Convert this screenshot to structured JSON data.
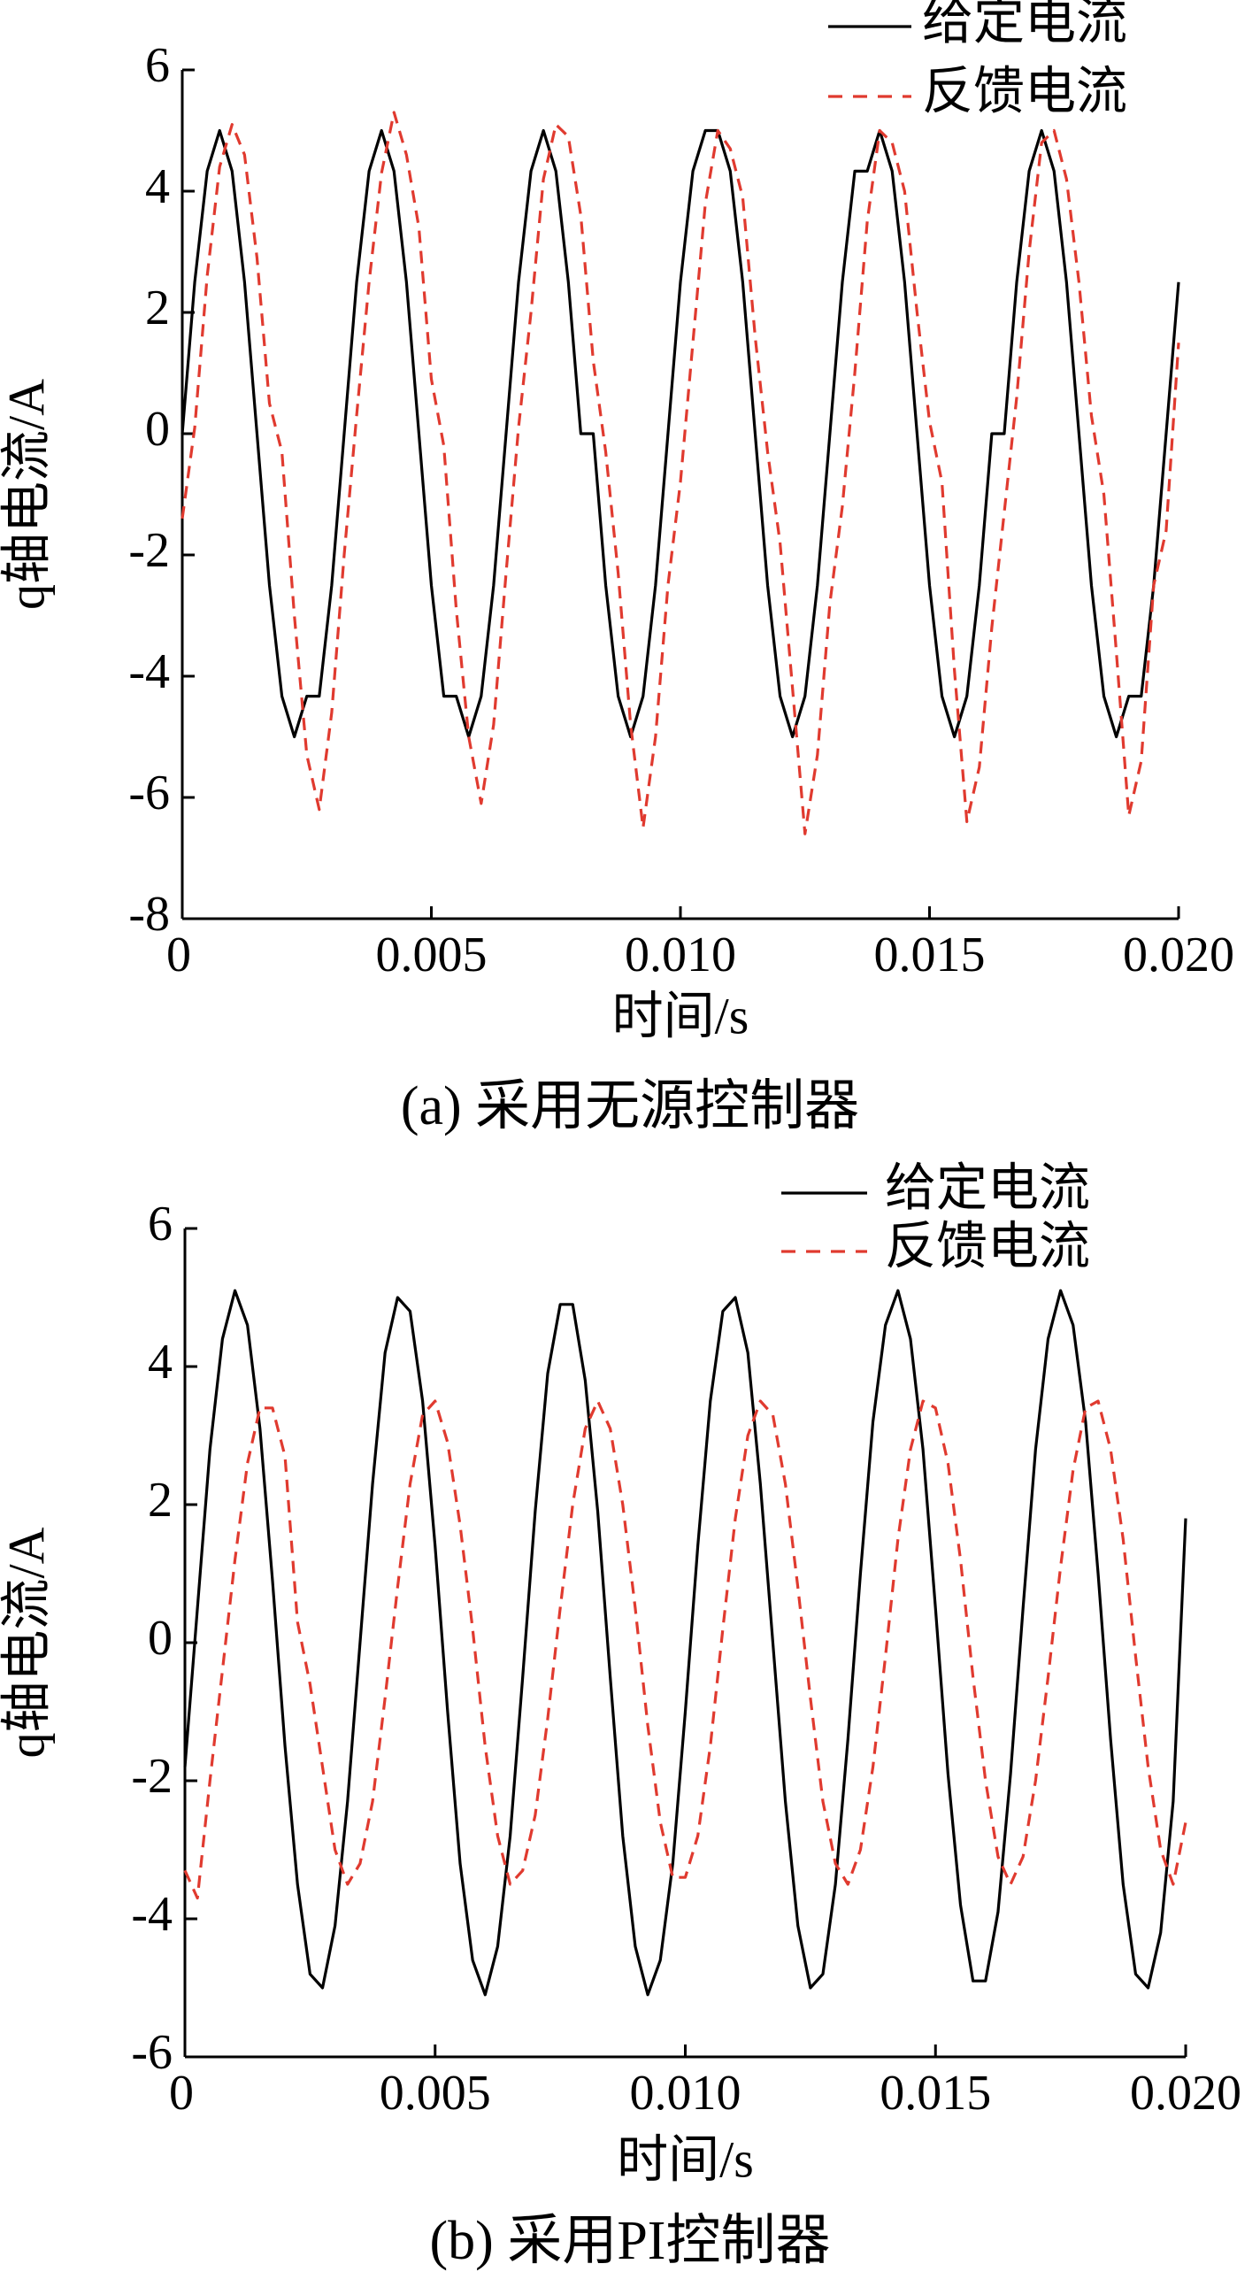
{
  "chart_data": [
    {
      "type": "line",
      "caption": "(a) 采用无源控制器",
      "xlabel": "时间/s",
      "ylabel": "q轴电流/A",
      "xlim": [
        0,
        0.02
      ],
      "ylim": [
        -8,
        6
      ],
      "xticks": [
        0,
        0.005,
        {
          "value": 0.01,
          "label": "0.010"
        },
        0.015,
        {
          "value": 0.02,
          "label": "0.020"
        }
      ],
      "yticks": [
        -8,
        -6,
        -4,
        -2,
        0,
        2,
        4,
        6
      ],
      "legend": "upper right",
      "x": [
        0,
        0.00025,
        0.0005,
        0.00075,
        0.001,
        0.00125,
        0.0015,
        0.00175,
        0.002,
        0.00225,
        0.0025,
        0.00275,
        0.003,
        0.00325,
        0.0035,
        0.00375,
        0.004,
        0.00425,
        0.0045,
        0.00475,
        0.005,
        0.00525,
        0.0055,
        0.00575,
        0.006,
        0.00625,
        0.0065,
        0.00675,
        0.007,
        0.00725,
        0.0075,
        0.00775,
        0.008,
        0.00825,
        0.0085,
        0.00875,
        0.009,
        0.00925,
        0.0095,
        0.00975,
        0.01,
        0.01025,
        0.0105,
        0.01075,
        0.011,
        0.01125,
        0.0115,
        0.01175,
        0.012,
        0.01225,
        0.0125,
        0.01275,
        0.013,
        0.01325,
        0.0135,
        0.01375,
        0.014,
        0.01425,
        0.0145,
        0.01475,
        0.015,
        0.01525,
        0.0155,
        0.01575,
        0.016,
        0.01625,
        0.0165,
        0.01675,
        0.017,
        0.01725,
        0.0175,
        0.01775,
        0.018,
        0.01825,
        0.0185,
        0.01875,
        0.019,
        0.01925,
        0.0195,
        0.01975,
        0.02
      ],
      "series": [
        {
          "name": "给定电流",
          "color": "#000000",
          "dash": false,
          "values": [
            0,
            2.5,
            4.33,
            5,
            4.33,
            2.5,
            0,
            -2.5,
            -4.33,
            -5,
            -4.33,
            -4.33,
            -2.5,
            0,
            2.5,
            4.33,
            5,
            4.33,
            2.5,
            0,
            -2.5,
            -4.33,
            -4.33,
            -5,
            -4.33,
            -2.5,
            0,
            2.5,
            4.33,
            5,
            4.33,
            2.5,
            0,
            0,
            -2.5,
            -4.33,
            -5,
            -4.33,
            -2.5,
            0,
            2.5,
            4.33,
            5,
            5,
            4.33,
            2.5,
            0,
            -2.5,
            -4.33,
            -5,
            -4.33,
            -2.5,
            0,
            2.5,
            4.33,
            4.33,
            5,
            4.33,
            2.5,
            0,
            -2.5,
            -4.33,
            -5,
            -4.33,
            -2.5,
            0,
            0,
            2.5,
            4.33,
            5,
            4.33,
            2.5,
            0,
            -2.5,
            -4.33,
            -5,
            -4.33,
            -4.33,
            -2.5,
            0,
            2.5
          ]
        },
        {
          "name": "反馈电流",
          "color": "#e03a2f",
          "dash": true,
          "values": [
            -1.4,
            0.1,
            2.6,
            4.4,
            5.1,
            4.6,
            2.9,
            0.5,
            -0.3,
            -3.0,
            -5.3,
            -6.2,
            -4.6,
            -2.0,
            0.3,
            2.5,
            4.3,
            5.3,
            4.6,
            3.4,
            0.9,
            -0.2,
            -2.9,
            -5.0,
            -6.1,
            -4.8,
            -2.3,
            0.1,
            2.0,
            4.2,
            5.1,
            4.9,
            3.6,
            1.2,
            -0.3,
            -2.3,
            -4.8,
            -6.5,
            -5.0,
            -2.5,
            -0.8,
            1.5,
            3.8,
            5.0,
            4.7,
            3.9,
            1.6,
            -0.3,
            -1.8,
            -4.2,
            -6.6,
            -5.3,
            -2.8,
            -1.2,
            1.0,
            3.5,
            5.0,
            4.8,
            4.0,
            2.0,
            0.2,
            -0.8,
            -3.9,
            -6.4,
            -5.5,
            -3.2,
            -1.3,
            0.6,
            3.0,
            4.8,
            5.0,
            4.2,
            2.5,
            0.3,
            -1.0,
            -3.6,
            -6.3,
            -5.4,
            -2.5,
            -1.6,
            1.5
          ]
        }
      ]
    },
    {
      "type": "line",
      "caption": "(b) 采用PI控制器",
      "xlabel": "时间/s",
      "ylabel": "q轴电流/A",
      "xlim": [
        0,
        0.02
      ],
      "ylim": [
        -6,
        6
      ],
      "xticks": [
        0,
        0.005,
        {
          "value": 0.01,
          "label": "0.010"
        },
        0.015,
        {
          "value": 0.02,
          "label": "0.020"
        }
      ],
      "yticks": [
        -6,
        -4,
        -2,
        0,
        2,
        4,
        6
      ],
      "legend": "upper right",
      "x": [
        0,
        0.00025,
        0.0005,
        0.00075,
        0.001,
        0.00125,
        0.0015,
        0.00175,
        0.002,
        0.00225,
        0.0025,
        0.00275,
        0.003,
        0.00325,
        0.0035,
        0.00375,
        0.004,
        0.00425,
        0.0045,
        0.00475,
        0.005,
        0.00525,
        0.0055,
        0.00575,
        0.006,
        0.00625,
        0.0065,
        0.00675,
        0.007,
        0.00725,
        0.0075,
        0.00775,
        0.008,
        0.00825,
        0.0085,
        0.00875,
        0.009,
        0.00925,
        0.0095,
        0.00975,
        0.01,
        0.01025,
        0.0105,
        0.01075,
        0.011,
        0.01125,
        0.0115,
        0.01175,
        0.012,
        0.01225,
        0.0125,
        0.01275,
        0.013,
        0.01325,
        0.0135,
        0.01375,
        0.014,
        0.01425,
        0.0145,
        0.01475,
        0.015,
        0.01525,
        0.0155,
        0.01575,
        0.016,
        0.01625,
        0.0165,
        0.01675,
        0.017,
        0.01725,
        0.0175,
        0.01775,
        0.018,
        0.01825,
        0.0185,
        0.01875,
        0.019,
        0.01925,
        0.0195,
        0.01975,
        0.02
      ],
      "series": [
        {
          "name": "给定电流",
          "color": "#000000",
          "dash": false,
          "values": [
            -1.8,
            0.5,
            2.8,
            4.4,
            5.1,
            4.6,
            3.1,
            0.9,
            -1.5,
            -3.5,
            -4.8,
            -5.0,
            -4.1,
            -2.3,
            0,
            2.3,
            4.2,
            5.0,
            4.8,
            3.5,
            1.4,
            -1.0,
            -3.2,
            -4.6,
            -5.1,
            -4.4,
            -2.8,
            -0.5,
            1.9,
            3.9,
            4.9,
            4.9,
            3.8,
            1.9,
            -0.5,
            -2.8,
            -4.4,
            -5.1,
            -4.6,
            -3.2,
            -1.0,
            1.4,
            3.5,
            4.8,
            5.0,
            4.2,
            2.3,
            0,
            -2.3,
            -4.1,
            -5.0,
            -4.8,
            -3.5,
            -1.4,
            1.0,
            3.2,
            4.6,
            5.1,
            4.4,
            2.8,
            0.5,
            -1.9,
            -3.8,
            -4.9,
            -4.9,
            -3.9,
            -1.9,
            0.5,
            2.8,
            4.4,
            5.1,
            4.6,
            3.2,
            1.0,
            -1.4,
            -3.5,
            -4.8,
            -5.0,
            -4.2,
            -2.3,
            1.8
          ]
        },
        {
          "name": "反馈电流",
          "color": "#e03a2f",
          "dash": true,
          "values": [
            -3.3,
            -3.7,
            -2.0,
            -0.4,
            1.2,
            2.6,
            3.4,
            3.4,
            2.7,
            0.3,
            -0.6,
            -1.8,
            -3.0,
            -3.5,
            -3.2,
            -2.3,
            -0.8,
            0.8,
            2.3,
            3.3,
            3.5,
            2.9,
            1.7,
            0.2,
            -1.5,
            -2.8,
            -3.5,
            -3.3,
            -2.5,
            -1.1,
            0.5,
            2.0,
            3.1,
            3.5,
            3.1,
            2.0,
            0.5,
            -1.2,
            -2.6,
            -3.4,
            -3.4,
            -2.8,
            -1.5,
            0.2,
            1.8,
            3.0,
            3.5,
            3.3,
            2.3,
            0.8,
            -0.8,
            -2.3,
            -3.2,
            -3.5,
            -3.0,
            -1.8,
            -0.2,
            1.5,
            2.8,
            3.5,
            3.4,
            2.6,
            1.2,
            -0.5,
            -2.0,
            -3.1,
            -3.5,
            -3.1,
            -2.0,
            -0.5,
            1.1,
            2.5,
            3.4,
            3.5,
            2.8,
            1.5,
            -0.2,
            -1.8,
            -3.0,
            -3.5,
            -2.6
          ]
        }
      ]
    }
  ]
}
